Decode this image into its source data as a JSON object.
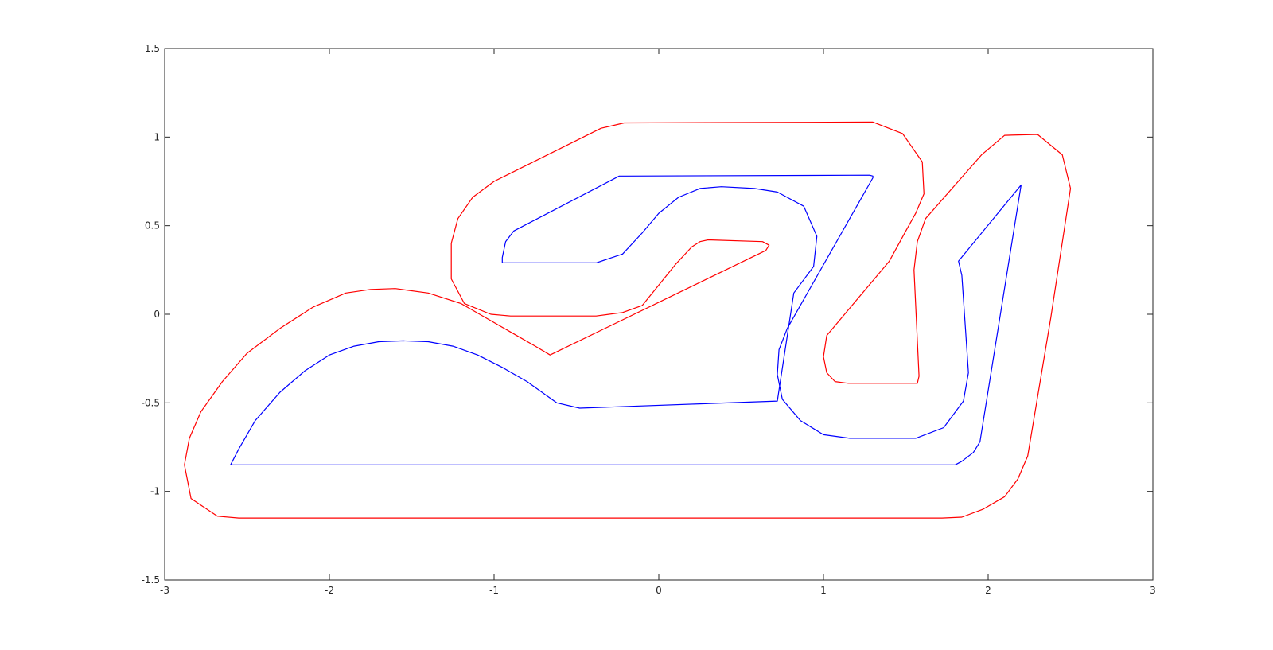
{
  "chart_data": {
    "type": "line",
    "title": "",
    "xlabel": "",
    "ylabel": "",
    "xlim": [
      -3,
      3
    ],
    "ylim": [
      -1.5,
      1.5
    ],
    "grid": false,
    "x_ticks": [
      "-3",
      "-2",
      "-1",
      "0",
      "1",
      "2",
      "3"
    ],
    "y_ticks": [
      "1.5",
      "1",
      "0.5",
      "0",
      "-0.5",
      "-1",
      "-1.5"
    ],
    "series": [
      {
        "color": "#ff0000",
        "x": [
          0,
          -2.55,
          -2.68,
          -2.84,
          -2.88,
          -2.85,
          -2.78,
          -2.65,
          -2.5,
          -2.3,
          -2.1,
          -1.9,
          -1.75,
          -1.6,
          -1.4,
          -1.2,
          -1.05,
          -0.9,
          -0.75,
          -0.66,
          0.65,
          0.67,
          0.63,
          0.3,
          0.25,
          0.2,
          0.1,
          -0.1,
          -0.22,
          -0.38,
          -0.9,
          -1.02,
          -1.18,
          -1.26,
          -1.26,
          -1.22,
          -1.13,
          -1.0,
          -0.35,
          -0.21,
          1.3,
          1.48,
          1.6,
          1.61,
          1.56,
          1.5,
          1.4,
          1.02,
          1.0,
          1.02,
          1.07,
          1.15,
          1.57,
          1.58,
          1.55,
          1.57,
          1.62,
          1.96,
          2.1,
          2.3,
          2.45,
          2.5,
          2.38,
          2.24,
          2.18,
          2.1,
          1.97,
          1.84,
          1.72,
          0
        ],
        "y": [
          -1.15,
          -1.15,
          -1.14,
          -1.04,
          -0.85,
          -0.7,
          -0.55,
          -0.38,
          -0.22,
          -0.08,
          0.04,
          0.12,
          0.14,
          0.145,
          0.12,
          0.06,
          -0.02,
          -0.1,
          -0.18,
          -0.23,
          0.36,
          0.39,
          0.41,
          0.42,
          0.41,
          0.38,
          0.28,
          0.05,
          0.01,
          -0.01,
          -0.01,
          0.0,
          0.06,
          0.2,
          0.4,
          0.54,
          0.66,
          0.75,
          1.05,
          1.08,
          1.085,
          1.02,
          0.86,
          0.68,
          0.57,
          0.47,
          0.3,
          -0.12,
          -0.24,
          -0.33,
          -0.38,
          -0.39,
          -0.39,
          -0.35,
          0.25,
          0.41,
          0.54,
          0.9,
          1.01,
          1.015,
          0.9,
          0.71,
          -0.02,
          -0.8,
          -0.93,
          -1.03,
          -1.1,
          -1.145,
          -1.15,
          -1.15
        ]
      },
      {
        "color": "#0000ff",
        "x": [
          0,
          -2.6,
          -2.55,
          -2.45,
          -2.3,
          -2.15,
          -2.0,
          -1.85,
          -1.7,
          -1.55,
          -1.4,
          -1.25,
          -1.1,
          -0.95,
          -0.8,
          -0.62,
          -0.48,
          0.72,
          0.82,
          0.94,
          0.96,
          0.88,
          0.72,
          0.58,
          0.38,
          0.25,
          0.12,
          0.0,
          -0.1,
          -0.22,
          -0.38,
          -0.9,
          -0.95,
          -0.95,
          -0.93,
          -0.88,
          -0.24,
          -0.2,
          1.28,
          1.3,
          1.3,
          0.78,
          0.73,
          0.72,
          0.75,
          0.86,
          1.0,
          1.16,
          1.56,
          1.73,
          1.85,
          1.88,
          1.84,
          1.82,
          2.2,
          1.95,
          1.91,
          1.84,
          1.8,
          0
        ],
        "y": [
          -0.85,
          -0.85,
          -0.76,
          -0.6,
          -0.44,
          -0.32,
          -0.23,
          -0.18,
          -0.155,
          -0.15,
          -0.155,
          -0.18,
          -0.23,
          -0.3,
          -0.38,
          -0.5,
          -0.53,
          -0.49,
          0.12,
          0.27,
          0.44,
          0.61,
          0.69,
          0.71,
          0.72,
          0.71,
          0.66,
          0.57,
          0.46,
          0.34,
          0.29,
          0.29,
          0.29,
          0.32,
          0.41,
          0.47,
          0.78,
          0.78,
          0.785,
          0.78,
          0.77,
          -0.08,
          -0.2,
          -0.34,
          -0.48,
          -0.6,
          -0.68,
          -0.7,
          -0.7,
          -0.64,
          -0.49,
          -0.33,
          0.22,
          0.3,
          0.73,
          -0.72,
          -0.78,
          -0.83,
          -0.85,
          -0.85
        ]
      }
    ]
  }
}
